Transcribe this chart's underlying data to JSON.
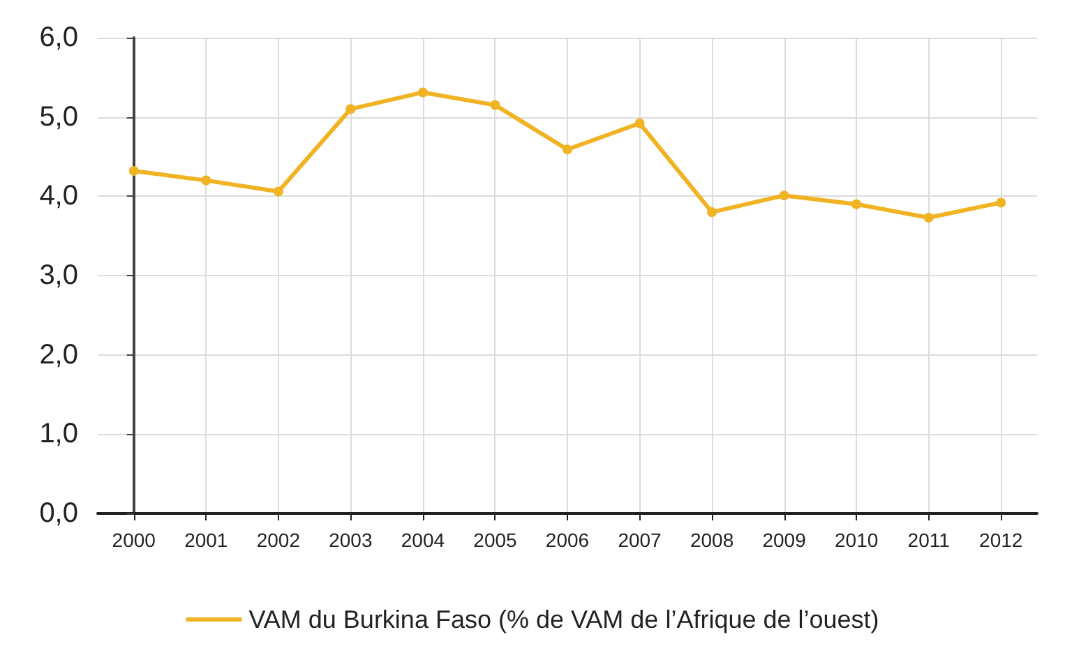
{
  "chart_data": {
    "type": "line",
    "categories": [
      "2000",
      "2001",
      "2002",
      "2003",
      "2004",
      "2005",
      "2006",
      "2007",
      "2008",
      "2009",
      "2010",
      "2011",
      "2012"
    ],
    "series": [
      {
        "name": "VAM du Burkina Faso (% de VAM de l’Afrique de l’ouest)",
        "color": "#f0b323",
        "values": [
          4.32,
          4.2,
          4.06,
          5.1,
          5.31,
          5.15,
          4.59,
          4.92,
          3.8,
          4.01,
          3.9,
          3.73,
          3.92
        ]
      }
    ],
    "ylim": [
      0,
      6
    ],
    "yticks": [
      {
        "value": 0,
        "label": "0,0"
      },
      {
        "value": 1,
        "label": "1,0"
      },
      {
        "value": 2,
        "label": "2,0"
      },
      {
        "value": 3,
        "label": "3,0"
      },
      {
        "value": 4,
        "label": "4,0"
      },
      {
        "value": 5,
        "label": "5,0"
      },
      {
        "value": 6,
        "label": "6,0"
      }
    ],
    "grid": true,
    "legend": "bottom",
    "marker": "circle",
    "line_style": "solid"
  }
}
